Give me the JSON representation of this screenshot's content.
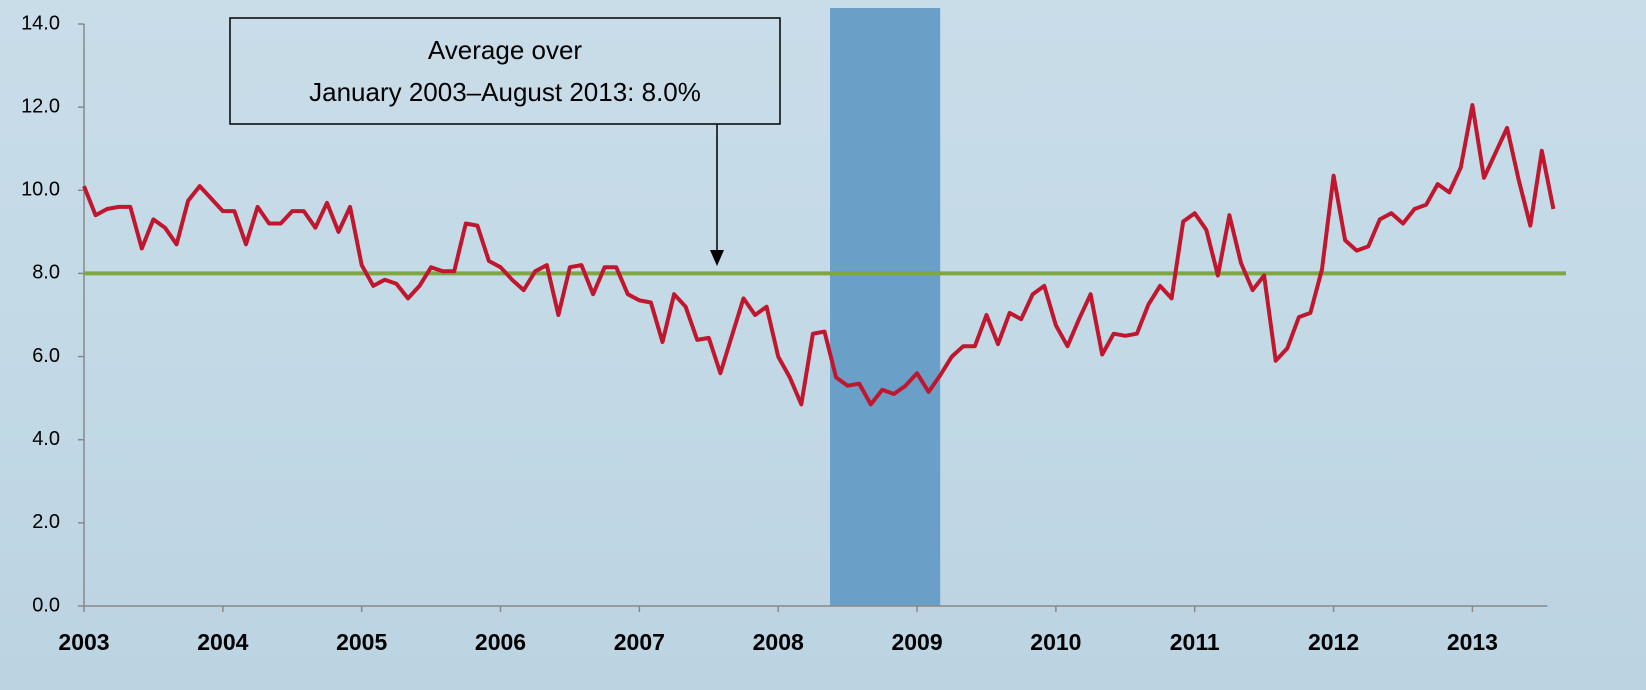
{
  "chart_data": {
    "type": "line",
    "categories": [
      "2003",
      null,
      null,
      null,
      null,
      null,
      null,
      null,
      null,
      null,
      null,
      null,
      "2004",
      null,
      null,
      null,
      null,
      null,
      null,
      null,
      null,
      null,
      null,
      null,
      "2005",
      null,
      null,
      null,
      null,
      null,
      null,
      null,
      null,
      null,
      null,
      null,
      "2006",
      null,
      null,
      null,
      null,
      null,
      null,
      null,
      null,
      null,
      null,
      null,
      "2007",
      null,
      null,
      null,
      null,
      null,
      null,
      null,
      null,
      null,
      null,
      null,
      "2008",
      null,
      null,
      null,
      null,
      null,
      null,
      null,
      null,
      null,
      null,
      null,
      "2009",
      null,
      null,
      null,
      null,
      null,
      null,
      null,
      null,
      null,
      null,
      null,
      "2010",
      null,
      null,
      null,
      null,
      null,
      null,
      null,
      null,
      null,
      null,
      null,
      "2011",
      null,
      null,
      null,
      null,
      null,
      null,
      null,
      null,
      null,
      null,
      null,
      "2012",
      null,
      null,
      null,
      null,
      null,
      null,
      null,
      null,
      null,
      null,
      null,
      "2013",
      null,
      null,
      null,
      null,
      null,
      null,
      null
    ],
    "values": [
      10.1,
      9.4,
      9.55,
      9.6,
      9.6,
      8.6,
      9.3,
      9.1,
      8.7,
      9.75,
      10.1,
      9.8,
      9.5,
      9.5,
      8.7,
      9.6,
      9.2,
      9.2,
      9.5,
      9.5,
      9.1,
      9.7,
      9.0,
      9.6,
      8.2,
      7.7,
      7.85,
      7.75,
      7.4,
      7.7,
      8.15,
      8.05,
      8.05,
      9.2,
      9.15,
      8.3,
      8.15,
      7.85,
      7.6,
      8.05,
      8.2,
      7.0,
      8.15,
      8.2,
      7.5,
      8.15,
      8.15,
      7.5,
      7.35,
      7.3,
      6.35,
      7.5,
      7.2,
      6.4,
      6.45,
      5.6,
      6.5,
      7.4,
      7.0,
      7.2,
      6.0,
      5.5,
      4.85,
      6.55,
      6.6,
      5.5,
      5.3,
      5.35,
      4.85,
      5.2,
      5.1,
      5.3,
      5.6,
      5.15,
      5.55,
      6.0,
      6.25,
      6.25,
      7.0,
      6.3,
      7.05,
      6.9,
      7.5,
      7.7,
      6.75,
      6.25,
      6.9,
      7.5,
      6.05,
      6.55,
      6.5,
      6.55,
      7.25,
      7.7,
      7.4,
      9.25,
      9.45,
      9.05,
      7.95,
      9.4,
      8.25,
      7.6,
      7.95,
      5.9,
      6.2,
      6.95,
      7.05,
      8.1,
      10.35,
      8.8,
      8.55,
      8.65,
      9.3,
      9.45,
      9.2,
      9.55,
      9.65,
      10.15,
      9.95,
      10.55,
      12.05,
      10.3,
      10.9,
      11.5,
      10.25,
      9.15,
      10.95,
      9.55
    ],
    "color": "#c0172f",
    "average": 8.0,
    "average_color": "#7ea83f",
    "annotation": [
      "Average over",
      "January 2003–August 2013: 8.0%"
    ],
    "shaded_band": {
      "from": 65,
      "to": 74,
      "color": "#6a9fc8"
    },
    "ylim": [
      0,
      14
    ],
    "yticks": [
      {
        "value": 0,
        "label": "0.0"
      },
      {
        "value": 2,
        "label": "2.0"
      },
      {
        "value": 4,
        "label": "4.0"
      },
      {
        "value": 6,
        "label": "6.0"
      },
      {
        "value": 8,
        "label": "8.0"
      },
      {
        "value": 10,
        "label": "10.0"
      },
      {
        "value": 12,
        "label": "12.0"
      },
      {
        "value": 14,
        "label": "14.0"
      }
    ]
  }
}
